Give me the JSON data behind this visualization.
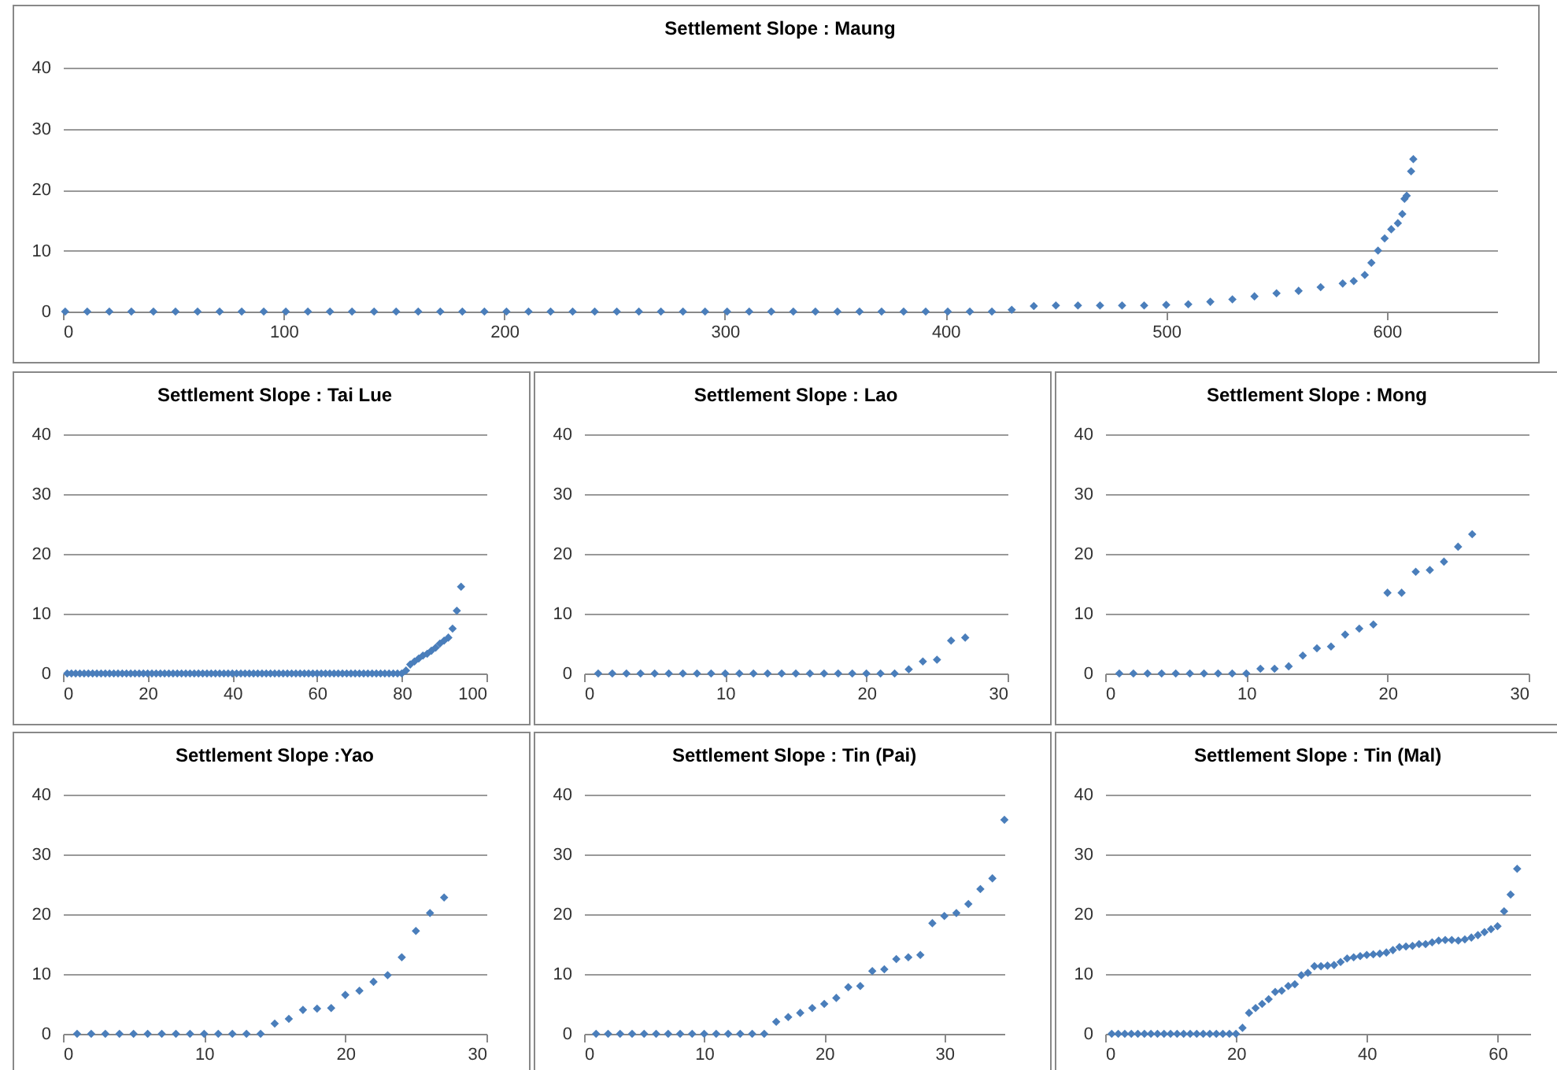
{
  "chart_data": [
    {
      "type": "scatter",
      "title": "Settlement Slope : Maung",
      "marker": "diamond",
      "grid": "y",
      "xlim": [
        0,
        650
      ],
      "xticks": [
        0,
        100,
        200,
        300,
        400,
        500,
        600
      ],
      "ylim": [
        0,
        40
      ],
      "yticks": [
        0,
        10,
        20,
        30,
        40
      ],
      "series": [
        {
          "color": "#4a7ebb",
          "x": [
            1,
            11,
            21,
            31,
            41,
            51,
            61,
            71,
            81,
            91,
            101,
            111,
            121,
            131,
            141,
            151,
            161,
            171,
            181,
            191,
            201,
            211,
            221,
            231,
            241,
            251,
            261,
            271,
            281,
            291,
            301,
            311,
            321,
            331,
            341,
            351,
            361,
            371,
            381,
            391,
            401,
            411,
            421,
            430,
            440,
            450,
            460,
            470,
            480,
            490,
            500,
            510,
            520,
            530,
            540,
            550,
            560,
            570,
            580,
            585,
            590,
            593,
            596,
            599,
            602,
            605,
            607,
            608,
            609,
            611,
            612
          ],
          "values": [
            0,
            0,
            0,
            0,
            0,
            0,
            0,
            0,
            0,
            0,
            0,
            0,
            0,
            0,
            0,
            0,
            0,
            0,
            0,
            0,
            0,
            0,
            0,
            0,
            0,
            0,
            0,
            0,
            0,
            0,
            0,
            0,
            0,
            0,
            0,
            0,
            0,
            0,
            0,
            0,
            0,
            0,
            0,
            0.3,
            0.9,
            1,
            1,
            1,
            1,
            1,
            1.1,
            1.2,
            1.6,
            2,
            2.5,
            3,
            3.4,
            4,
            4.6,
            5,
            6,
            8,
            10,
            12,
            13.5,
            14.5,
            16,
            18.5,
            19,
            23,
            25
          ]
        }
      ]
    },
    {
      "type": "scatter",
      "title": "Settlement Slope : Tai Lue",
      "marker": "diamond",
      "grid": "y",
      "xlim": [
        0,
        100
      ],
      "xticks": [
        0,
        20,
        40,
        60,
        80,
        100
      ],
      "ylim": [
        0,
        40
      ],
      "yticks": [
        0,
        10,
        20,
        30,
        40
      ],
      "series": [
        {
          "color": "#4a7ebb",
          "x": [
            1,
            2,
            3,
            4,
            5,
            6,
            7,
            8,
            9,
            10,
            11,
            12,
            13,
            14,
            15,
            16,
            17,
            18,
            19,
            20,
            21,
            22,
            23,
            24,
            25,
            26,
            27,
            28,
            29,
            30,
            31,
            32,
            33,
            34,
            35,
            36,
            37,
            38,
            39,
            40,
            41,
            42,
            43,
            44,
            45,
            46,
            47,
            48,
            49,
            50,
            51,
            52,
            53,
            54,
            55,
            56,
            57,
            58,
            59,
            60,
            61,
            62,
            63,
            64,
            65,
            66,
            67,
            68,
            69,
            70,
            71,
            72,
            73,
            74,
            75,
            76,
            77,
            78,
            79,
            80,
            81,
            82,
            83,
            84,
            85,
            86,
            87,
            88,
            89,
            90,
            91,
            92,
            93,
            94
          ],
          "values": [
            0,
            0,
            0,
            0,
            0,
            0,
            0,
            0,
            0,
            0,
            0,
            0,
            0,
            0,
            0,
            0,
            0,
            0,
            0,
            0,
            0,
            0,
            0,
            0,
            0,
            0,
            0,
            0,
            0,
            0,
            0,
            0,
            0,
            0,
            0,
            0,
            0,
            0,
            0,
            0,
            0,
            0,
            0,
            0,
            0,
            0,
            0,
            0,
            0,
            0,
            0,
            0,
            0,
            0,
            0,
            0,
            0,
            0,
            0,
            0,
            0,
            0,
            0,
            0,
            0,
            0,
            0,
            0,
            0,
            0,
            0,
            0,
            0,
            0,
            0,
            0,
            0,
            0,
            0,
            0,
            0.5,
            1.5,
            2,
            2.5,
            3,
            3.3,
            3.8,
            4.3,
            5,
            5.5,
            6,
            7.5,
            10.5,
            14.5
          ]
        }
      ]
    },
    {
      "type": "scatter",
      "title": "Settlement Slope : Lao",
      "marker": "diamond",
      "grid": "y",
      "xlim": [
        0,
        30
      ],
      "xticks": [
        0,
        10,
        20,
        30
      ],
      "ylim": [
        0,
        40
      ],
      "yticks": [
        0,
        10,
        20,
        30,
        40
      ],
      "series": [
        {
          "color": "#4a7ebb",
          "x": [
            1,
            2,
            3,
            4,
            5,
            6,
            7,
            8,
            9,
            10,
            11,
            12,
            13,
            14,
            15,
            16,
            17,
            18,
            19,
            20,
            21,
            22,
            23,
            24,
            25,
            26,
            27
          ],
          "values": [
            0,
            0,
            0,
            0,
            0,
            0,
            0,
            0,
            0,
            0,
            0,
            0,
            0,
            0,
            0,
            0,
            0,
            0,
            0,
            0,
            0,
            0,
            0.7,
            2,
            2.3,
            5.5,
            6
          ]
        }
      ]
    },
    {
      "type": "scatter",
      "title": "Settlement Slope : Mong",
      "marker": "diamond",
      "grid": "y",
      "xlim": [
        0,
        30
      ],
      "xticks": [
        0,
        10,
        20,
        30
      ],
      "ylim": [
        0,
        40
      ],
      "yticks": [
        0,
        10,
        20,
        30,
        40
      ],
      "series": [
        {
          "color": "#4a7ebb",
          "x": [
            1,
            2,
            3,
            4,
            5,
            6,
            7,
            8,
            9,
            10,
            11,
            12,
            13,
            14,
            15,
            16,
            17,
            18,
            19,
            20,
            21,
            22,
            23,
            24,
            25,
            26
          ],
          "values": [
            0,
            0,
            0,
            0,
            0,
            0,
            0,
            0,
            0,
            0,
            0.8,
            0.8,
            1.2,
            3,
            4.2,
            4.5,
            6.5,
            7.5,
            8.2,
            13.5,
            13.5,
            17,
            17.3,
            18.7,
            21.2,
            23.3
          ]
        }
      ]
    },
    {
      "type": "scatter",
      "title": "Settlement Slope :Yao",
      "marker": "diamond",
      "grid": "y",
      "xlim": [
        0,
        30
      ],
      "xticks": [
        0,
        10,
        20,
        30
      ],
      "ylim": [
        0,
        40
      ],
      "yticks": [
        0,
        10,
        20,
        30,
        40
      ],
      "series": [
        {
          "color": "#4a7ebb",
          "x": [
            1,
            2,
            3,
            4,
            5,
            6,
            7,
            8,
            9,
            10,
            11,
            12,
            13,
            14,
            15,
            16,
            17,
            18,
            19,
            20,
            21,
            22,
            23,
            24,
            25,
            26,
            27
          ],
          "values": [
            0,
            0,
            0,
            0,
            0,
            0,
            0,
            0,
            0,
            0,
            0,
            0,
            0,
            0,
            1.7,
            2.5,
            4,
            4.2,
            4.3,
            6.5,
            7.2,
            8.7,
            9.8,
            12.8,
            17.2,
            20.2,
            22.8
          ]
        }
      ]
    },
    {
      "type": "scatter",
      "title": "Settlement Slope : Tin (Pai)",
      "marker": "diamond",
      "grid": "y",
      "xlim": [
        0,
        35
      ],
      "xticks": [
        0,
        10,
        20,
        30
      ],
      "ylim": [
        0,
        40
      ],
      "yticks": [
        0,
        10,
        20,
        30,
        40
      ],
      "series": [
        {
          "color": "#4a7ebb",
          "x": [
            1,
            2,
            3,
            4,
            5,
            6,
            7,
            8,
            9,
            10,
            11,
            12,
            13,
            14,
            15,
            16,
            17,
            18,
            19,
            20,
            21,
            22,
            23,
            24,
            25,
            26,
            27,
            28,
            29,
            30,
            31,
            32,
            33,
            34,
            35
          ],
          "values": [
            0,
            0,
            0,
            0,
            0,
            0,
            0,
            0,
            0,
            0,
            0,
            0,
            0,
            0,
            0,
            2,
            2.8,
            3.5,
            4.3,
            5,
            6,
            7.8,
            8,
            10.5,
            10.8,
            12.5,
            12.8,
            13.2,
            18.5,
            19.7,
            20.2,
            21.7,
            24.2,
            26,
            35.8
          ]
        }
      ]
    },
    {
      "type": "scatter",
      "title": "Settlement Slope : Tin (Mal)",
      "marker": "diamond",
      "grid": "y",
      "xlim": [
        0,
        65
      ],
      "xticks": [
        0,
        20,
        40,
        60
      ],
      "ylim": [
        0,
        40
      ],
      "yticks": [
        0,
        10,
        20,
        30,
        40
      ],
      "series": [
        {
          "color": "#4a7ebb",
          "x": [
            1,
            2,
            3,
            4,
            5,
            6,
            7,
            8,
            9,
            10,
            11,
            12,
            13,
            14,
            15,
            16,
            17,
            18,
            19,
            20,
            21,
            22,
            23,
            24,
            25,
            26,
            27,
            28,
            29,
            30,
            31,
            32,
            33,
            34,
            35,
            36,
            37,
            38,
            39,
            40,
            41,
            42,
            43,
            44,
            45,
            46,
            47,
            48,
            49,
            50,
            51,
            52,
            53,
            54,
            55,
            56,
            57,
            58,
            59,
            60,
            61,
            62,
            63
          ],
          "values": [
            0,
            0,
            0,
            0,
            0,
            0,
            0,
            0,
            0,
            0,
            0,
            0,
            0,
            0,
            0,
            0,
            0,
            0,
            0,
            0,
            1,
            3.5,
            4.3,
            5,
            5.8,
            7,
            7.2,
            8,
            8.3,
            9.8,
            10.2,
            11.3,
            11.3,
            11.4,
            11.5,
            12,
            12.6,
            12.8,
            13,
            13.2,
            13.3,
            13.4,
            13.6,
            14,
            14.5,
            14.6,
            14.7,
            15,
            15,
            15.3,
            15.6,
            15.7,
            15.7,
            15.6,
            15.8,
            16.1,
            16.5,
            17,
            17.5,
            18,
            20.5,
            23.3,
            27.6
          ]
        }
      ]
    }
  ]
}
